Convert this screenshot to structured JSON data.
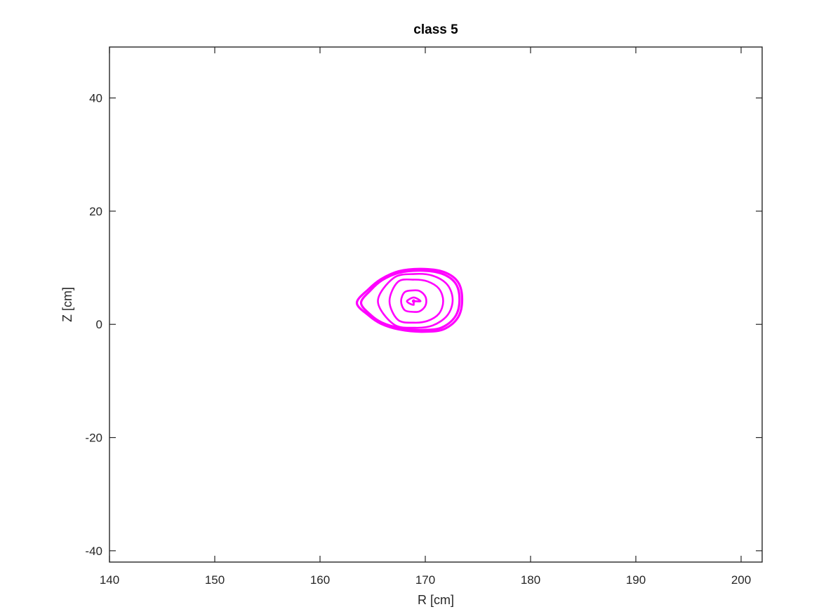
{
  "chart_data": {
    "type": "line",
    "title": "class 5",
    "xlabel": "R [cm]",
    "ylabel": "Z [cm]",
    "xlim": [
      140,
      202
    ],
    "ylim": [
      -42,
      49
    ],
    "xticks": [
      140,
      150,
      160,
      170,
      180,
      190,
      200
    ],
    "yticks": [
      -40,
      -20,
      0,
      20,
      40
    ],
    "xtick_labels": [
      "140",
      "150",
      "160",
      "170",
      "180",
      "190",
      "200"
    ],
    "ytick_labels": [
      "-40",
      "-20",
      "0",
      "20",
      "40"
    ],
    "grid": false,
    "line_color": "#ff00ff",
    "magnetic_axis": {
      "r": 168.9,
      "z": 4.1
    },
    "series": [
      {
        "x": [
          168.9,
          169.55,
          168.9,
          168.25,
          168.9
        ],
        "y": [
          4.1,
          4.1,
          4.75,
          4.1,
          3.45
        ]
      },
      {
        "x": [
          170.1,
          169.95,
          169.45,
          168.9,
          168.05,
          167.7,
          168.05,
          168.9,
          169.45,
          169.95,
          170.1
        ],
        "y": [
          4.1,
          5.1,
          5.9,
          6.0,
          5.7,
          4.1,
          2.5,
          2.2,
          2.3,
          3.1,
          4.1
        ]
      },
      {
        "x": [
          171.7,
          171.3,
          170.2,
          168.9,
          167.4,
          166.6,
          167.4,
          168.9,
          170.2,
          171.3,
          171.7
        ],
        "y": [
          4.1,
          6.3,
          7.6,
          7.9,
          7.5,
          4.1,
          0.8,
          0.3,
          0.6,
          1.9,
          4.1
        ]
      },
      {
        "x": [
          172.6,
          172.1,
          170.7,
          169.0,
          167.0,
          165.5,
          167.0,
          169.0,
          170.7,
          172.1,
          172.6
        ],
        "y": [
          4.3,
          7.0,
          8.6,
          8.9,
          8.2,
          4.1,
          0.0,
          -0.6,
          -0.2,
          1.6,
          4.3
        ]
      },
      {
        "x": [
          173.5,
          173.1,
          171.7,
          169.6,
          167.5,
          165.8,
          164.6,
          163.5,
          164.6,
          165.8,
          167.5,
          169.6,
          171.7,
          173.1,
          173.5
        ],
        "y": [
          4.4,
          7.5,
          9.3,
          9.8,
          9.4,
          8.0,
          6.2,
          3.8,
          1.6,
          0.1,
          -0.9,
          -1.3,
          -0.9,
          1.2,
          4.4
        ]
      },
      {
        "x": [
          173.25,
          172.85,
          171.5,
          169.5,
          167.5,
          165.9,
          164.8,
          163.9,
          164.8,
          165.9,
          167.5,
          169.5,
          171.5,
          172.85,
          173.25
        ],
        "y": [
          4.4,
          7.3,
          9.0,
          9.5,
          9.1,
          7.8,
          6.0,
          3.8,
          1.7,
          0.3,
          -0.6,
          -1.0,
          -0.6,
          1.4,
          4.4
        ]
      }
    ]
  }
}
